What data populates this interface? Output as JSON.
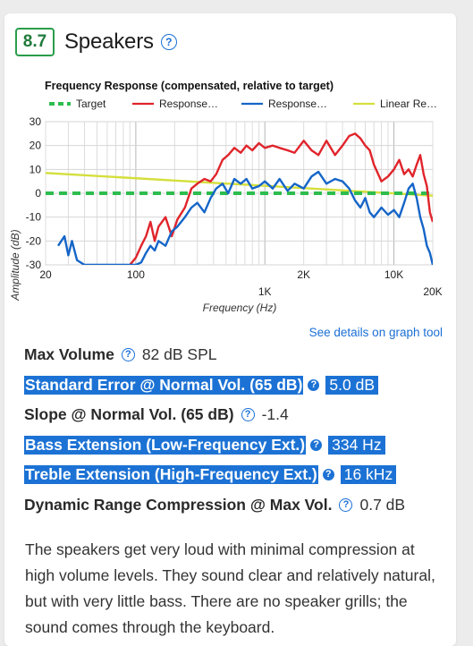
{
  "score": "8.7",
  "section_title": "Speakers",
  "chart_data": {
    "type": "line",
    "title": "Frequency Response (compensated, relative to target)",
    "xlabel": "Frequency (Hz)",
    "ylabel": "Amplitude (dB)",
    "xscale": "log",
    "xlim": [
      20,
      20000
    ],
    "ylim": [
      -30,
      30
    ],
    "yticks": [
      30,
      20,
      10,
      0,
      -10,
      -20,
      -30
    ],
    "xtick_labels_top": [
      "20",
      "100",
      "2K",
      "10K"
    ],
    "xtick_labels_bottom": [
      "1K",
      "20K"
    ],
    "grid": true,
    "legend_position": "top",
    "series": [
      {
        "name": "Target",
        "color": "#2dbd4e",
        "style": "dashed",
        "x": [
          20,
          20000
        ],
        "y": [
          0,
          0
        ]
      },
      {
        "name": "Response…",
        "color": "#e0242b",
        "style": "solid",
        "x": [
          90,
          100,
          110,
          120,
          130,
          140,
          150,
          170,
          190,
          210,
          240,
          270,
          300,
          340,
          380,
          420,
          470,
          520,
          580,
          650,
          720,
          800,
          900,
          1000,
          1150,
          1300,
          1500,
          1700,
          2000,
          2300,
          2600,
          3000,
          3500,
          4000,
          4500,
          5000,
          5500,
          6000,
          6500,
          7000,
          8000,
          9000,
          10000,
          11000,
          12000,
          13000,
          14000,
          15000,
          16000,
          17000,
          18000,
          19000,
          20000
        ],
        "y": [
          -30,
          -27,
          -22,
          -18,
          -12,
          -20,
          -14,
          -10,
          -18,
          -11,
          -6,
          2,
          4,
          6,
          5,
          8,
          14,
          16,
          19,
          17,
          20,
          18,
          21,
          19,
          20,
          19,
          18,
          17,
          22,
          18,
          16,
          22,
          16,
          20,
          24,
          25,
          23,
          20,
          18,
          12,
          5,
          7,
          10,
          14,
          8,
          10,
          7,
          12,
          16,
          8,
          3,
          -8,
          -12
        ]
      },
      {
        "name": "Response…",
        "color": "#1565c8",
        "style": "solid",
        "x": [
          25,
          28,
          30,
          32,
          35,
          40,
          60,
          80,
          100,
          110,
          120,
          130,
          140,
          150,
          170,
          190,
          210,
          240,
          270,
          300,
          340,
          380,
          420,
          470,
          520,
          580,
          650,
          720,
          800,
          900,
          1000,
          1150,
          1300,
          1500,
          1700,
          2000,
          2300,
          2600,
          3000,
          3500,
          4000,
          4500,
          5000,
          5500,
          6000,
          6500,
          7000,
          8000,
          9000,
          10000,
          11000,
          12000,
          13000,
          14000,
          15000,
          16000,
          17000,
          18000,
          19000,
          20000
        ],
        "y": [
          -22,
          -18,
          -26,
          -20,
          -28,
          -30,
          -30,
          -30,
          -30,
          -29,
          -25,
          -22,
          -24,
          -20,
          -22,
          -16,
          -14,
          -10,
          -6,
          -4,
          -8,
          -2,
          2,
          4,
          0,
          6,
          4,
          6,
          2,
          3,
          5,
          2,
          6,
          1,
          4,
          2,
          7,
          9,
          4,
          6,
          5,
          2,
          -3,
          -6,
          -2,
          -8,
          -10,
          -6,
          -9,
          -7,
          -10,
          -4,
          2,
          4,
          -2,
          -10,
          -15,
          -22,
          -25,
          -30
        ]
      },
      {
        "name": "Linear Re…",
        "color": "#d4df3c",
        "style": "solid",
        "x": [
          20,
          20000
        ],
        "y": [
          8.5,
          -1
        ]
      }
    ]
  },
  "details_link": "See details on graph tool",
  "metrics": [
    {
      "label": "Max Volume",
      "value": "82 dB SPL"
    },
    {
      "label": "Standard Error @ Normal Vol. (65 dB)",
      "value": "5.0 dB"
    },
    {
      "label": "Slope @ Normal Vol. (65 dB)",
      "value": "-1.4"
    },
    {
      "label": "Bass Extension (Low-Frequency Ext.)",
      "value": "334 Hz"
    },
    {
      "label": "Treble Extension (High-Frequency Ext.)",
      "value": "16 kHz"
    },
    {
      "label": "Dynamic Range Compression @ Max Vol.",
      "value": "0.7 dB"
    }
  ],
  "description": "The speakers get very loud with minimal compression at high volume levels. They sound clear and relatively natural, but with very little bass. There are no speaker grills; the sound comes through the keyboard.",
  "help_icon_glyph": "?"
}
